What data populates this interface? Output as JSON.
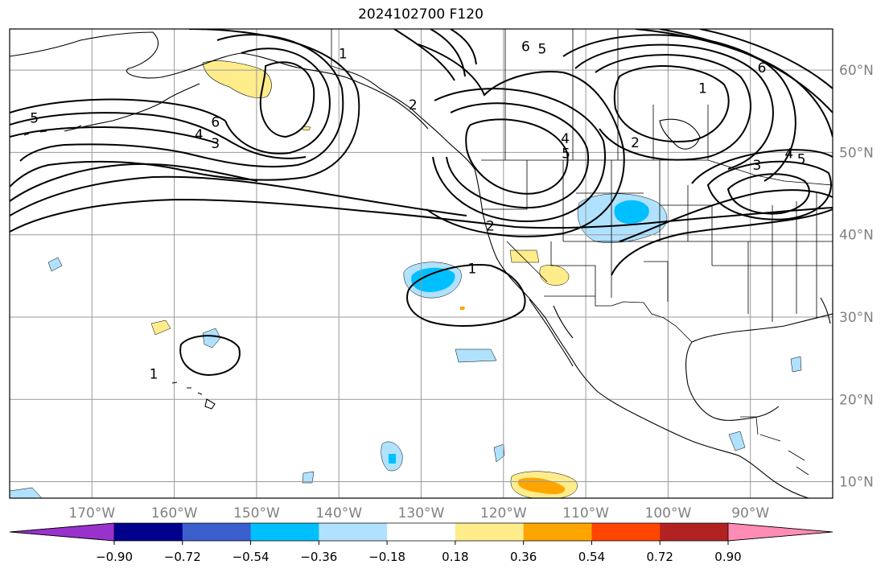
{
  "title": "2024102700 F120",
  "map": {
    "lon_min": -180,
    "lon_max": -80,
    "lat_min": 8,
    "lat_max": 65,
    "lat_ticks": [
      {
        "value": 60,
        "label": "60°N"
      },
      {
        "value": 50,
        "label": "50°N"
      },
      {
        "value": 40,
        "label": "40°N"
      },
      {
        "value": 30,
        "label": "30°N"
      },
      {
        "value": 20,
        "label": "20°N"
      },
      {
        "value": 10,
        "label": "10°N"
      }
    ],
    "lon_ticks": [
      {
        "value": -170,
        "label": "170°W"
      },
      {
        "value": -160,
        "label": "160°W"
      },
      {
        "value": -150,
        "label": "150°W"
      },
      {
        "value": -140,
        "label": "140°W"
      },
      {
        "value": -130,
        "label": "130°W"
      },
      {
        "value": -120,
        "label": "120°W"
      },
      {
        "value": -110,
        "label": "110°W"
      },
      {
        "value": -100,
        "label": "100°W"
      },
      {
        "value": -90,
        "label": "90°W"
      }
    ],
    "contour_labels": [
      {
        "text": "1",
        "lon": -139.5,
        "lat": 62
      },
      {
        "text": "5",
        "lon": -177,
        "lat": 54.2
      },
      {
        "text": "6",
        "lon": -155,
        "lat": 53.7
      },
      {
        "text": "4",
        "lon": -157,
        "lat": 52.2
      },
      {
        "text": "3",
        "lon": -155,
        "lat": 51.1
      },
      {
        "text": "2",
        "lon": -131,
        "lat": 55.8
      },
      {
        "text": "6",
        "lon": -117.3,
        "lat": 62.9
      },
      {
        "text": "5",
        "lon": -115.3,
        "lat": 62.6
      },
      {
        "text": "4",
        "lon": -112.5,
        "lat": 51.7
      },
      {
        "text": "5",
        "lon": -112.4,
        "lat": 49.9
      },
      {
        "text": "2",
        "lon": -104,
        "lat": 51.2
      },
      {
        "text": "1",
        "lon": -95.8,
        "lat": 57.8
      },
      {
        "text": "6",
        "lon": -88.6,
        "lat": 60.3
      },
      {
        "text": "3",
        "lon": -89.2,
        "lat": 48.5
      },
      {
        "text": "4",
        "lon": -85.3,
        "lat": 49.9
      },
      {
        "text": "5",
        "lon": -83.8,
        "lat": 49.2
      },
      {
        "text": "2",
        "lon": -121.6,
        "lat": 41.1
      },
      {
        "text": "1",
        "lon": -123.8,
        "lat": 35.9
      },
      {
        "text": "1",
        "lon": -162.5,
        "lat": 23.1
      }
    ]
  },
  "colorbar": {
    "colors": [
      "#9932cc",
      "#00008b",
      "#3a5fcd",
      "#00bfff",
      "#b0e2ff",
      "#ffffff",
      "#ffec8b",
      "#ffa500",
      "#ff4500",
      "#b22222",
      "#ff8cb4"
    ],
    "tick_labels": [
      "−0.90",
      "−0.72",
      "−0.54",
      "−0.36",
      "−0.18",
      "0.18",
      "0.36",
      "0.54",
      "0.72",
      "0.90"
    ],
    "levels": [
      -0.9,
      -0.72,
      -0.54,
      -0.36,
      -0.18,
      0.18,
      0.36,
      0.54,
      0.72,
      0.9
    ]
  }
}
